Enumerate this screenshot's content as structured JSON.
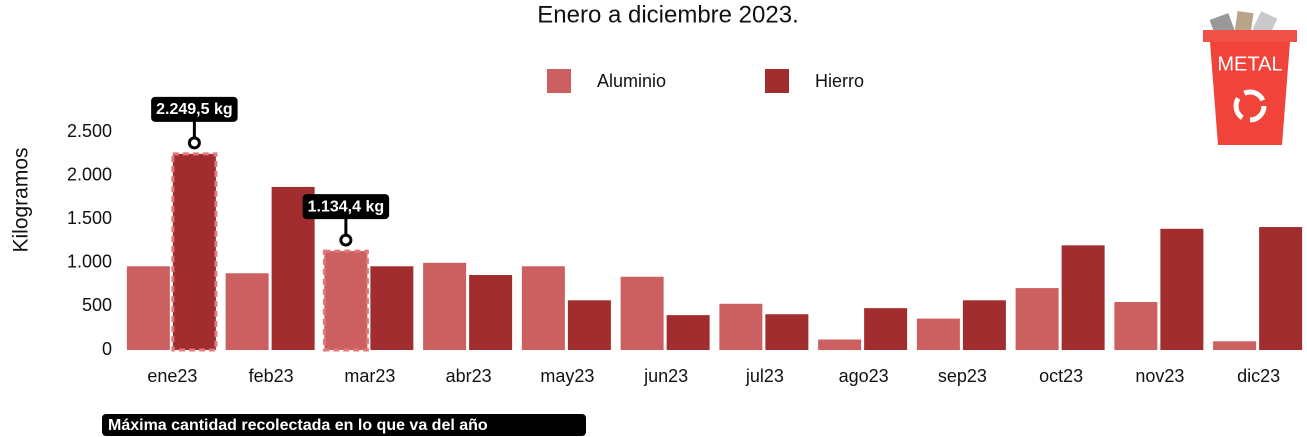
{
  "chart_data": {
    "type": "bar",
    "title": "Enero a diciembre 2023.",
    "y_label": "Kilogramos",
    "note": "Máxima cantidad recolectada en lo que va del año",
    "icon_label": "METAL",
    "categories": [
      "ene23",
      "feb23",
      "mar23",
      "abr23",
      "may23",
      "jun23",
      "jul23",
      "ago23",
      "sep23",
      "oct23",
      "nov23",
      "dic23"
    ],
    "series": [
      {
        "name": "Aluminio",
        "color": "#cc5f5f",
        "values": [
          960,
          880,
          1134.4,
          1000,
          960,
          840,
          530,
          120,
          360,
          710,
          550,
          100
        ],
        "value_labels": [
          null,
          null,
          "1.134,4 kg",
          null,
          null,
          null,
          null,
          null,
          null,
          null,
          null,
          null
        ]
      },
      {
        "name": "Hierro",
        "color": "#a12d2f",
        "values": [
          2249.5,
          1870,
          960,
          860,
          570,
          400,
          410,
          480,
          570,
          1200,
          1390,
          1410
        ],
        "value_labels": [
          "2.249,5 kg",
          null,
          null,
          null,
          null,
          null,
          null,
          null,
          null,
          null,
          null,
          null
        ]
      }
    ],
    "ylim": [
      0,
      2500
    ],
    "yticks": [
      0,
      500,
      {
        "value": 1000,
        "label": "1.000"
      },
      {
        "value": 1500,
        "label": "1.500"
      },
      {
        "value": 2000,
        "label": "2.000"
      },
      {
        "value": 2500,
        "label": "2.500"
      }
    ],
    "grid": false,
    "legend": "top"
  }
}
